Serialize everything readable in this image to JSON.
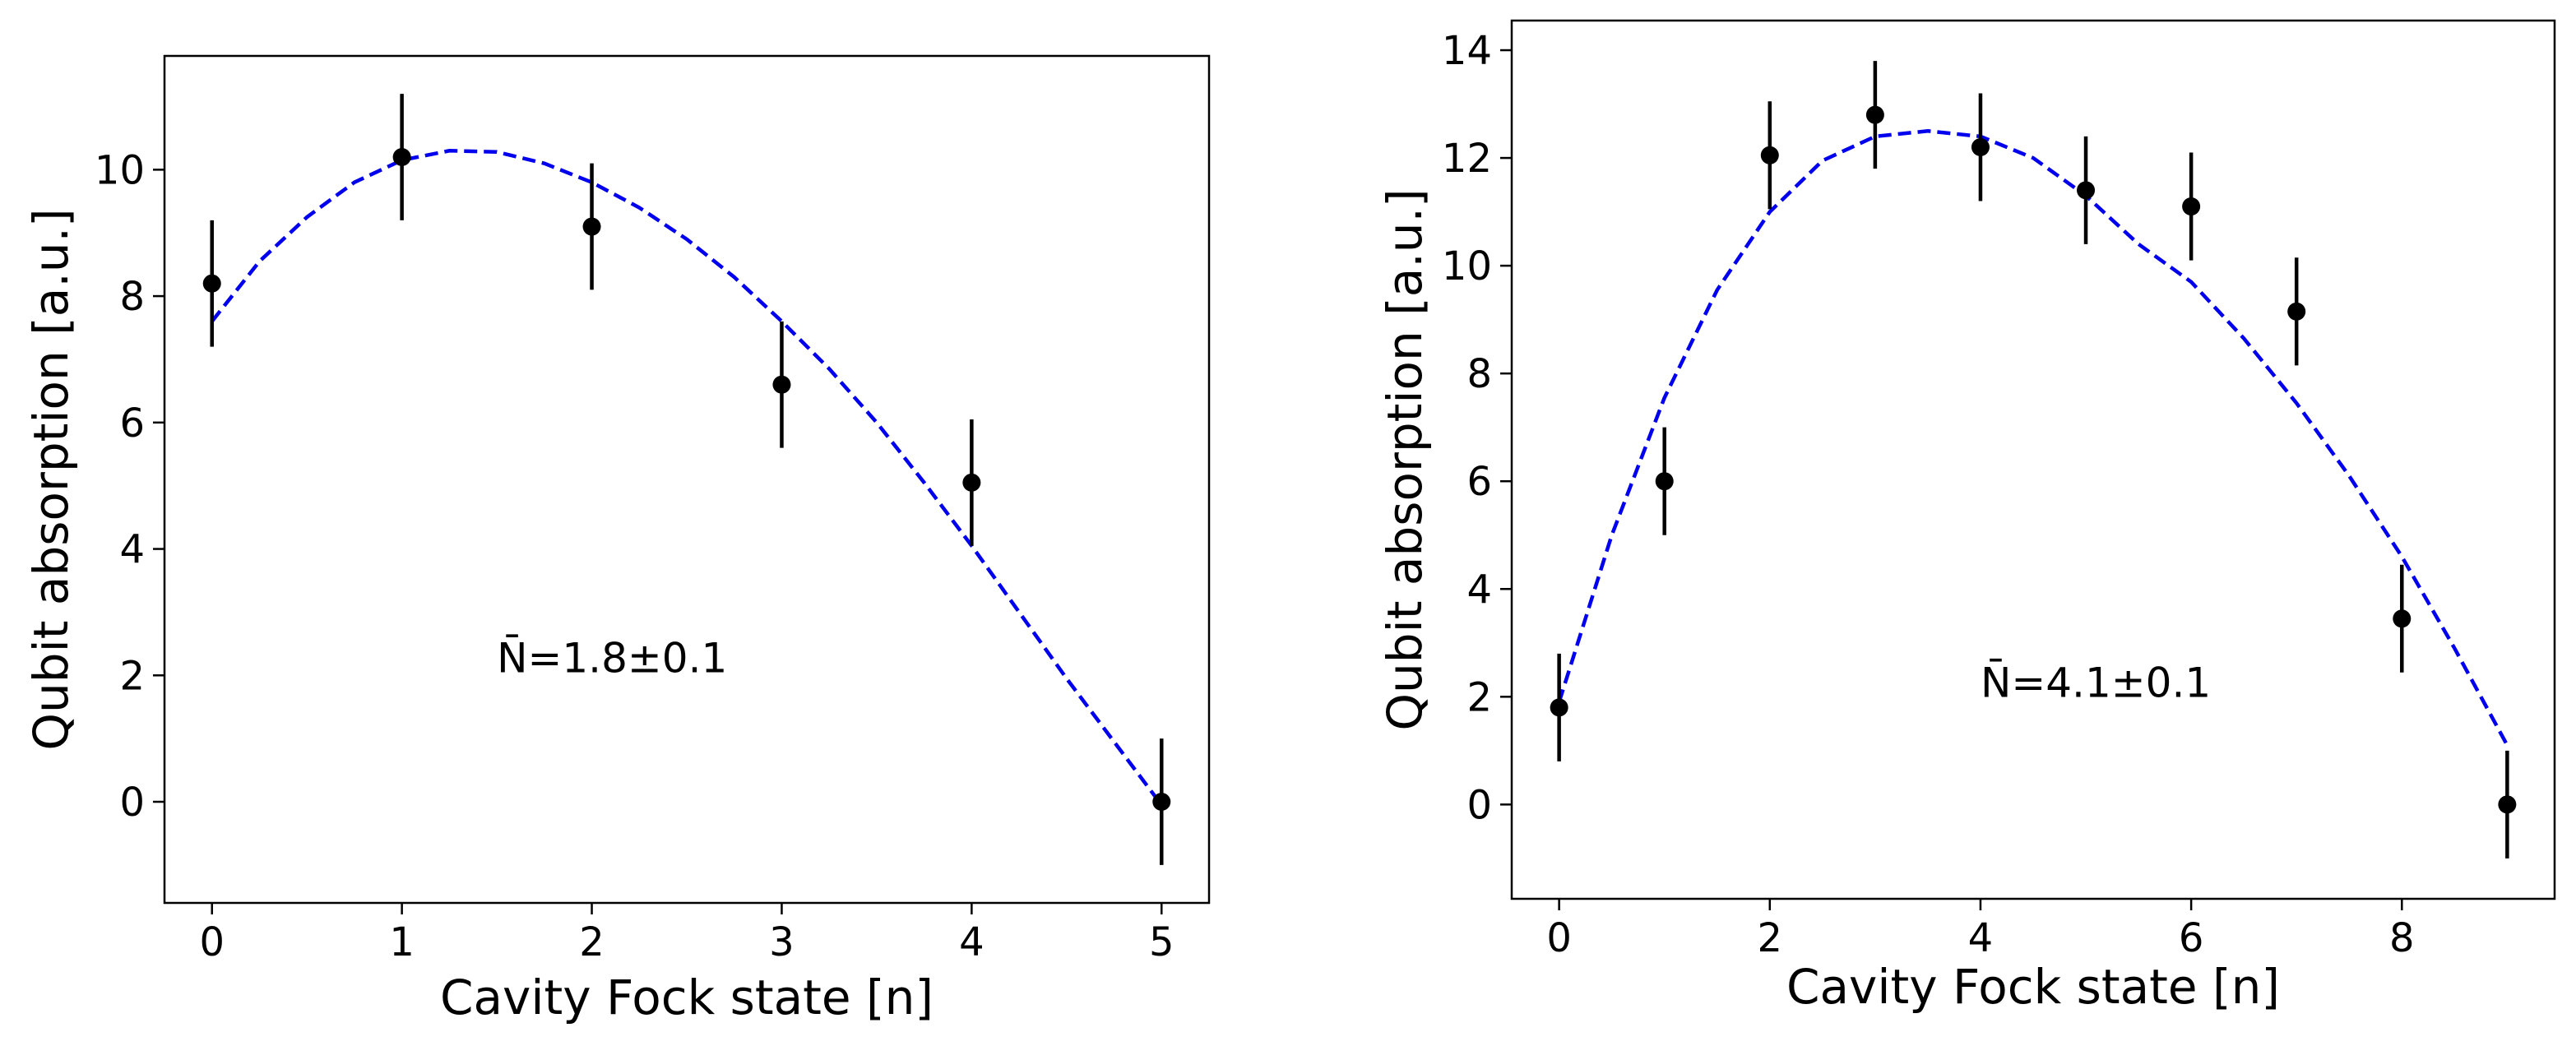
{
  "chart_data": [
    {
      "type": "scatter",
      "xlabel": "Cavity Fock state [n]",
      "ylabel": "Qubit absorption [a.u.]",
      "xlim": [
        -0.25,
        5.25
      ],
      "ylim": [
        -1.6,
        11.8
      ],
      "xticks": [
        0,
        1,
        2,
        3,
        4,
        5
      ],
      "yticks": [
        0,
        2,
        4,
        6,
        8,
        10
      ],
      "annotation": "N̄=1.8±0.1",
      "annotation_pos": [
        1.5,
        2.05
      ],
      "points": {
        "x": [
          0,
          1,
          2,
          3,
          4,
          5
        ],
        "y": [
          8.2,
          10.2,
          9.1,
          6.6,
          5.05,
          0.0
        ],
        "yerr": [
          1.0,
          1.0,
          1.0,
          1.0,
          1.0,
          1.0
        ],
        "color": "#000000"
      },
      "fit": {
        "style": "dashed",
        "color": "#0000ee",
        "x": [
          0,
          0.25,
          0.5,
          0.75,
          1.0,
          1.25,
          1.5,
          1.75,
          2.0,
          2.25,
          2.5,
          2.75,
          3.0,
          3.25,
          3.5,
          3.75,
          4.0,
          4.25,
          4.5,
          4.75,
          5.0
        ],
        "y": [
          7.6,
          8.55,
          9.25,
          9.8,
          10.15,
          10.3,
          10.28,
          10.1,
          9.8,
          9.4,
          8.9,
          8.3,
          7.6,
          6.85,
          6.0,
          5.05,
          4.05,
          3.0,
          1.95,
          0.95,
          -0.05
        ]
      }
    },
    {
      "type": "scatter",
      "xlabel": "Cavity Fock state [n]",
      "ylabel": "Qubit absorption [a.u.]",
      "xlim": [
        -0.45,
        9.45
      ],
      "ylim": [
        -1.75,
        14.55
      ],
      "xticks": [
        0,
        2,
        4,
        6,
        8
      ],
      "yticks": [
        0,
        2,
        4,
        6,
        8,
        10,
        12,
        14
      ],
      "annotation": "N̄=4.1±0.1",
      "annotation_pos": [
        4.0,
        2.0
      ],
      "points": {
        "x": [
          0,
          1,
          2,
          3,
          4,
          5,
          6,
          7,
          8,
          9
        ],
        "y": [
          1.8,
          6.0,
          12.05,
          12.8,
          12.2,
          11.4,
          11.1,
          9.15,
          3.45,
          0.0
        ],
        "yerr": [
          1.0,
          1.0,
          1.0,
          1.0,
          1.0,
          1.0,
          1.0,
          1.0,
          1.0,
          1.0
        ],
        "color": "#000000"
      },
      "fit": {
        "style": "dashed",
        "color": "#0000ee",
        "x": [
          0,
          0.5,
          1.0,
          1.5,
          2.0,
          2.5,
          3.0,
          3.5,
          4.0,
          4.5,
          5.0,
          5.5,
          6.0,
          6.5,
          7.0,
          7.5,
          8.0,
          8.5,
          9.0
        ],
        "y": [
          1.9,
          5.0,
          7.55,
          9.55,
          11.0,
          11.95,
          12.4,
          12.5,
          12.4,
          12.0,
          11.3,
          10.4,
          9.7,
          8.65,
          7.45,
          6.1,
          4.6,
          2.9,
          1.1
        ]
      }
    }
  ]
}
